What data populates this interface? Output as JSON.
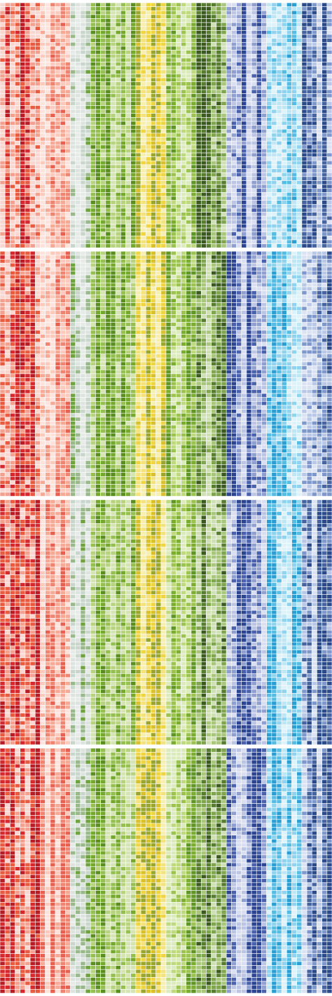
{
  "chart_data": {
    "type": "heatmap",
    "title": "",
    "xlabel": "",
    "ylabel": "",
    "grid": true,
    "legend": "none",
    "panels": [
      {
        "name": "",
        "rows": 62
      },
      {
        "name": "",
        "rows": 62
      },
      {
        "name": "",
        "rows": 62
      },
      {
        "name": "",
        "rows": 62
      }
    ],
    "column_groups": [
      {
        "id": "red",
        "columns": 8,
        "levels": [
          "#f9d6cf",
          "#f4a08f",
          "#ea5a3f",
          "#d7282e",
          "#b91c24"
        ]
      },
      {
        "id": "salmon",
        "columns": 6,
        "levels": [
          "#fde3dc",
          "#fbcabd",
          "#f6a995",
          "#ef8471",
          "#e8604f"
        ]
      },
      {
        "id": "lightgray",
        "columns": 4,
        "levels": [
          "#e6ebe7",
          "#dde4df",
          "#c9d6cb",
          "#9ab98b",
          "#6ea33d"
        ]
      },
      {
        "id": "green",
        "columns": 9,
        "levels": [
          "#d4e4b3",
          "#b7d37e",
          "#95c050",
          "#74a92c",
          "#5a8f20"
        ]
      },
      {
        "id": "yellow",
        "columns": 6,
        "levels": [
          "#f7efb0",
          "#f3e37a",
          "#efd640",
          "#d8c12a",
          "#9aa62c"
        ]
      },
      {
        "id": "lime",
        "columns": 6,
        "levels": [
          "#dcebbd",
          "#bfd97f",
          "#9cc34f",
          "#7bad2f",
          "#5f9626"
        ]
      },
      {
        "id": "darkgreen",
        "columns": 6,
        "levels": [
          "#cfe0b4",
          "#a9c77b",
          "#7fa64c",
          "#577d2e",
          "#3b5a1f"
        ]
      },
      {
        "id": "navy",
        "columns": 8,
        "levels": [
          "#d9def0",
          "#bcc5e4",
          "#8e9fd0",
          "#4a61ad",
          "#2b4592"
        ]
      },
      {
        "id": "cyan",
        "columns": 7,
        "levels": [
          "#def2f9",
          "#bfe6f4",
          "#8fd3ee",
          "#55bce4",
          "#2a9fd4"
        ]
      },
      {
        "id": "blue",
        "columns": 6,
        "levels": [
          "#dbe3f2",
          "#b9c8e6",
          "#7f98cc",
          "#46649f",
          "#2b4a8a"
        ]
      }
    ],
    "levels": 5,
    "seed": 1977
  }
}
